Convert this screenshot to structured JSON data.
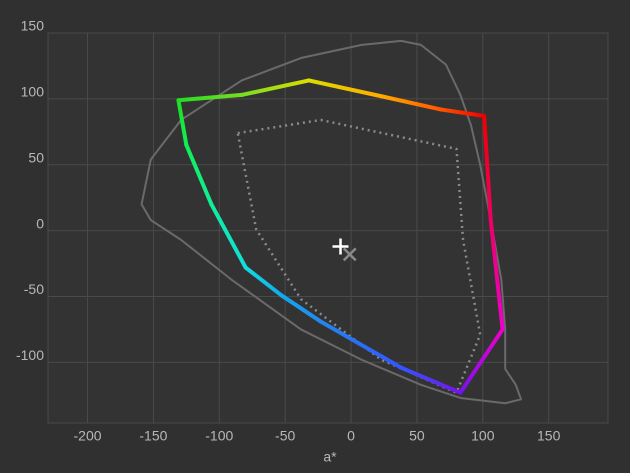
{
  "chart_data": {
    "type": "gamut",
    "xlabel": "a*",
    "xlim": [
      -230,
      195
    ],
    "ylim": [
      -146,
      150
    ],
    "xticks": [
      -200,
      -150,
      -100,
      -50,
      0,
      50,
      100,
      150
    ],
    "yticks": [
      -100,
      -50,
      0,
      50,
      100,
      150
    ],
    "grid": true,
    "series": [
      {
        "style": "solid",
        "color": "#6a6a6a",
        "x": [
          -159,
          -152,
          -129,
          -83,
          -38,
          8,
          38,
          53,
          72,
          83,
          91,
          98,
          106,
          114,
          117,
          117,
          125,
          129,
          117,
          83,
          53,
          8,
          -38,
          -91,
          -129,
          -152
        ],
        "values": [
          20,
          54,
          84,
          114,
          131,
          141,
          144,
          141,
          126,
          103,
          80,
          50,
          8,
          -37,
          -75,
          -105,
          -117,
          -128,
          -131,
          -127,
          -117,
          -98,
          -75,
          -37,
          -7,
          8
        ]
      },
      {
        "style": "dotted",
        "color": "#8a8a8a",
        "x": [
          -86,
          -23,
          80,
          85,
          98,
          80,
          23,
          -38,
          -72
        ],
        "values": [
          74,
          84,
          62,
          -7,
          -79,
          -123,
          -98,
          -52,
          1
        ]
      },
      {
        "style": "colored",
        "x": [
          -131,
          -83,
          -32,
          23,
          68,
          101,
          106,
          115,
          83,
          38,
          -23,
          -53,
          -80,
          -106,
          -125
        ],
        "values": [
          99,
          103,
          114,
          102,
          92,
          87,
          8,
          -75,
          -123,
          -104,
          -69,
          -49,
          -28,
          20,
          65
        ],
        "colors": [
          "#22dd22",
          "#77dd22",
          "#dddd00",
          "#ffaa00",
          "#ff5500",
          "#ee0000",
          "#ee0066",
          "#ee00cc",
          "#7711ee",
          "#3355ff",
          "#2288ee",
          "#11aaee",
          "#11dddd",
          "#11ee99",
          "#11ee55"
        ]
      }
    ],
    "markers": [
      {
        "symbol": "plus",
        "color": "#ffffff",
        "x": -8,
        "y": -12
      },
      {
        "symbol": "cross",
        "color": "#8a8a8a",
        "x": -1,
        "y": -18
      }
    ]
  }
}
